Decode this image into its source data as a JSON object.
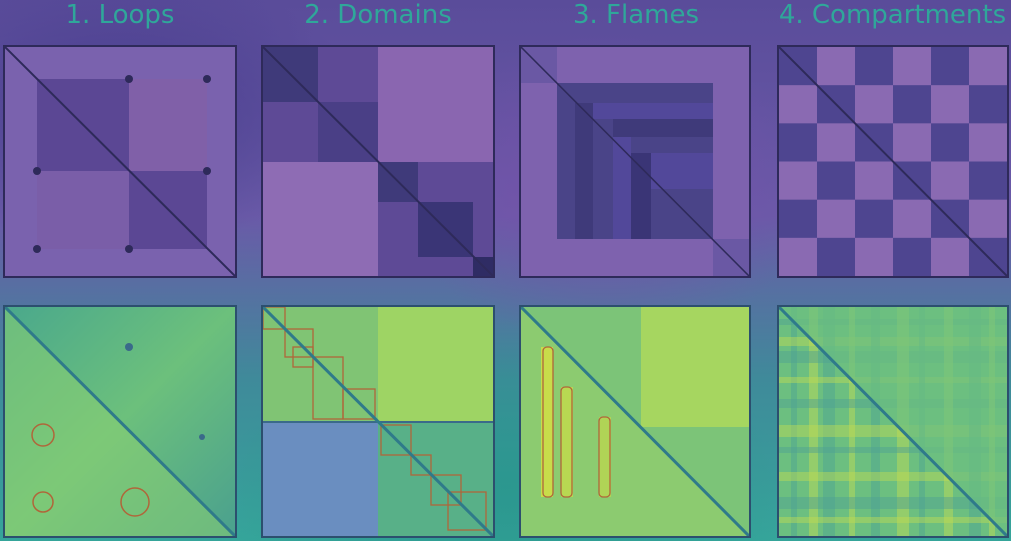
{
  "titles": [
    "1. Loops",
    "2. Domains",
    "3. Flames",
    "4. Compartments"
  ],
  "colors": {
    "schematic_dark": "#2e2a5a",
    "schematic_mid": "#5a4a96",
    "schematic_light": "#8e6ab0",
    "heat_green": "#4cb68a",
    "heat_yellow": "#c8dc4a",
    "annotation": "#b0663a"
  }
}
